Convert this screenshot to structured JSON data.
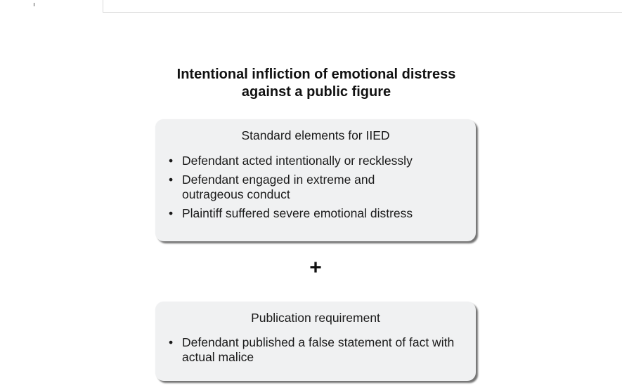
{
  "title": {
    "line1": "Intentional infliction of emotional distress",
    "line2": "against a public figure"
  },
  "standard_elements": {
    "heading": "Standard elements for IIED",
    "items": [
      "Defendant acted intentionally or recklessly",
      "Defendant engaged in extreme and outrageous conduct",
      "Plaintiff suffered severe emotional distress"
    ]
  },
  "operator": "+",
  "publication": {
    "heading": "Publication requirement",
    "items": [
      "Defendant published a false statement of fact with actual malice"
    ]
  },
  "bullet_symbol": "•",
  "colors": {
    "box_fill": "#f0f1f2",
    "text": "#1a1a1a"
  }
}
